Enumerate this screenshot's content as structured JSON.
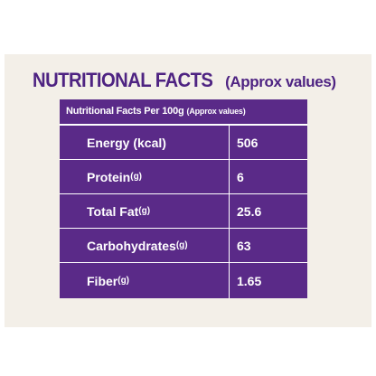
{
  "header": {
    "title": "NUTRITIONAL FACTS",
    "subtitle": "(Approx values)"
  },
  "table": {
    "heading": "Nutritional Facts Per 100g",
    "heading_note": "(Approx values)",
    "rows": [
      {
        "label": "Energy (kcal)",
        "value": "506"
      },
      {
        "label": "Protein",
        "unit": "(g)",
        "value": "6"
      },
      {
        "label": "Total Fat",
        "unit": "(g)",
        "value": "25.6"
      },
      {
        "label": "Carbohydrates",
        "unit": "(g)",
        "value": "63"
      },
      {
        "label": "Fiber",
        "unit": "(g)",
        "value": "1.65"
      }
    ]
  }
}
